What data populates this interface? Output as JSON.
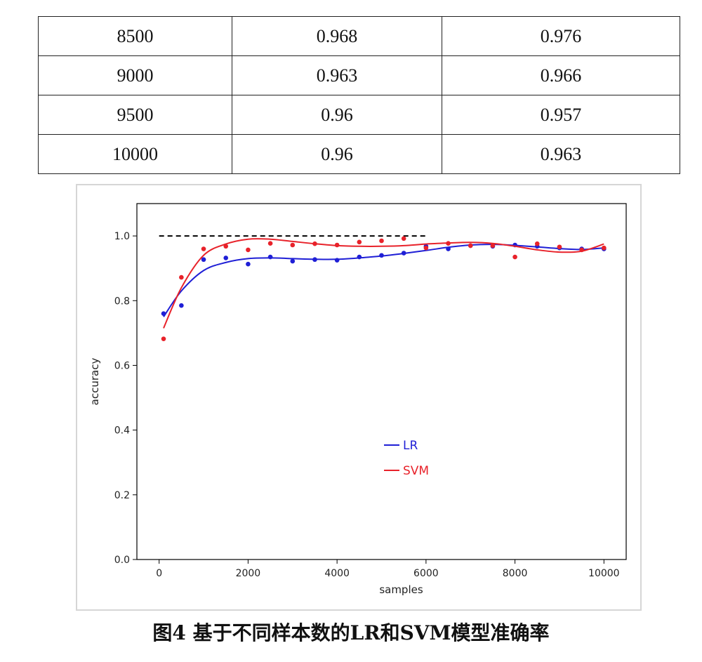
{
  "table": {
    "rows": [
      [
        "8500",
        "0.968",
        "0.976"
      ],
      [
        "9000",
        "0.963",
        "0.966"
      ],
      [
        "9500",
        "0.96",
        "0.957"
      ],
      [
        "10000",
        "0.96",
        "0.963"
      ]
    ]
  },
  "chart_data": {
    "type": "line",
    "xlabel": "samples",
    "ylabel": "accuracy",
    "xlim": [
      -500,
      10500
    ],
    "ylim": [
      0,
      1.1
    ],
    "xticks": [
      "0",
      "2000",
      "4000",
      "6000",
      "8000",
      "10000"
    ],
    "yticks": [
      "0.0",
      "0.2",
      "0.4",
      "0.6",
      "0.8",
      "1.0"
    ],
    "legend_position": "center",
    "reference_line": {
      "y": 1.0,
      "x_from": 0,
      "x_to": 6000,
      "style": "dashed",
      "color": "#000000"
    },
    "series": [
      {
        "name": "LR",
        "color": "#1f1fd6",
        "points": [
          [
            100,
            0.76
          ],
          [
            500,
            0.785
          ],
          [
            1000,
            0.927
          ],
          [
            1500,
            0.932
          ],
          [
            2000,
            0.913
          ],
          [
            2500,
            0.935
          ],
          [
            3000,
            0.922
          ],
          [
            3500,
            0.927
          ],
          [
            4000,
            0.925
          ],
          [
            4500,
            0.935
          ],
          [
            5000,
            0.94
          ],
          [
            5500,
            0.947
          ],
          [
            6000,
            0.968
          ],
          [
            6500,
            0.96
          ],
          [
            7000,
            0.97
          ],
          [
            7500,
            0.968
          ],
          [
            8000,
            0.972
          ],
          [
            8500,
            0.968
          ],
          [
            9000,
            0.963
          ],
          [
            9500,
            0.96
          ],
          [
            10000,
            0.96
          ]
        ],
        "fit": [
          [
            100,
            0.75
          ],
          [
            500,
            0.83
          ],
          [
            1000,
            0.893
          ],
          [
            1500,
            0.918
          ],
          [
            2000,
            0.93
          ],
          [
            2500,
            0.932
          ],
          [
            3000,
            0.93
          ],
          [
            3500,
            0.928
          ],
          [
            4000,
            0.928
          ],
          [
            4500,
            0.932
          ],
          [
            5000,
            0.938
          ],
          [
            5500,
            0.946
          ],
          [
            6000,
            0.955
          ],
          [
            6500,
            0.965
          ],
          [
            7000,
            0.972
          ],
          [
            7500,
            0.974
          ],
          [
            8000,
            0.971
          ],
          [
            8500,
            0.966
          ],
          [
            9000,
            0.961
          ],
          [
            9500,
            0.958
          ],
          [
            10000,
            0.963
          ]
        ]
      },
      {
        "name": "SVM",
        "color": "#e8222a",
        "points": [
          [
            100,
            0.682
          ],
          [
            500,
            0.872
          ],
          [
            1000,
            0.96
          ],
          [
            1500,
            0.968
          ],
          [
            2000,
            0.957
          ],
          [
            2500,
            0.977
          ],
          [
            3000,
            0.972
          ],
          [
            3500,
            0.976
          ],
          [
            4000,
            0.972
          ],
          [
            4500,
            0.981
          ],
          [
            5000,
            0.985
          ],
          [
            5500,
            0.992
          ],
          [
            6000,
            0.963
          ],
          [
            6500,
            0.977
          ],
          [
            7000,
            0.97
          ],
          [
            7500,
            0.97
          ],
          [
            8000,
            0.935
          ],
          [
            8500,
            0.976
          ],
          [
            9000,
            0.966
          ],
          [
            9500,
            0.957
          ],
          [
            10000,
            0.963
          ]
        ],
        "fit": [
          [
            100,
            0.715
          ],
          [
            500,
            0.84
          ],
          [
            1000,
            0.94
          ],
          [
            1500,
            0.975
          ],
          [
            2000,
            0.99
          ],
          [
            2500,
            0.99
          ],
          [
            3000,
            0.983
          ],
          [
            3500,
            0.976
          ],
          [
            4000,
            0.97
          ],
          [
            4500,
            0.968
          ],
          [
            5000,
            0.968
          ],
          [
            5500,
            0.97
          ],
          [
            6000,
            0.975
          ],
          [
            6500,
            0.978
          ],
          [
            7000,
            0.98
          ],
          [
            7500,
            0.977
          ],
          [
            8000,
            0.968
          ],
          [
            8500,
            0.957
          ],
          [
            9000,
            0.95
          ],
          [
            9500,
            0.953
          ],
          [
            10000,
            0.975
          ]
        ]
      }
    ]
  },
  "caption": "图4  基于不同样本数的LR和SVM模型准确率"
}
